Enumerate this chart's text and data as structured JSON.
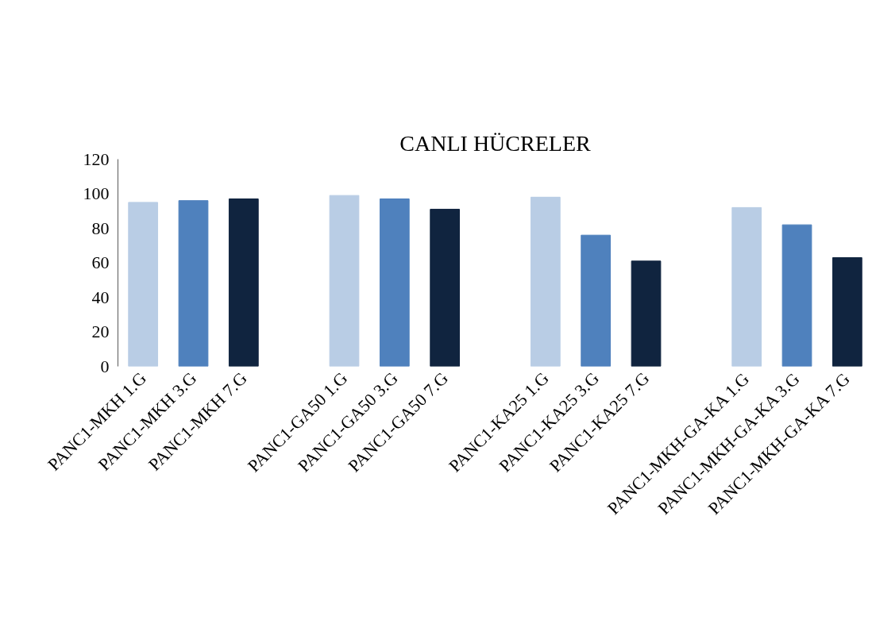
{
  "chart_data": {
    "type": "bar",
    "title": "CANLI HÜCRELER",
    "categories": [
      "PANC1-MKH 1.G",
      "PANC1-MKH 3.G",
      "PANC1-MKH 7.G",
      null,
      "PANC1-GA50 1.G",
      "PANC1-GA50 3.G",
      "PANC1-GA50 7.G",
      null,
      "PANC1-KA25 1.G",
      "PANC1-KA25 3.G",
      "PANC1-KA25 7.G",
      null,
      "PANC1-MKH-GA-KA 1.G",
      "PANC1-MKH-GA-KA 3.G",
      "PANC1-MKH-GA-KA 7.G"
    ],
    "values": [
      95,
      96,
      97,
      null,
      99,
      97,
      91,
      null,
      98,
      76,
      61,
      null,
      92,
      82,
      63
    ],
    "colors": [
      "#b9cde5",
      "#4f81bd",
      "#10243f",
      null,
      "#b9cde5",
      "#4f81bd",
      "#10243f",
      null,
      "#b9cde5",
      "#4f81bd",
      "#10243f",
      null,
      "#b9cde5",
      "#4f81bd",
      "#10243f"
    ],
    "ylim": [
      0,
      120
    ],
    "yticks": [
      0,
      20,
      40,
      60,
      80,
      100,
      120
    ],
    "grid": false
  }
}
